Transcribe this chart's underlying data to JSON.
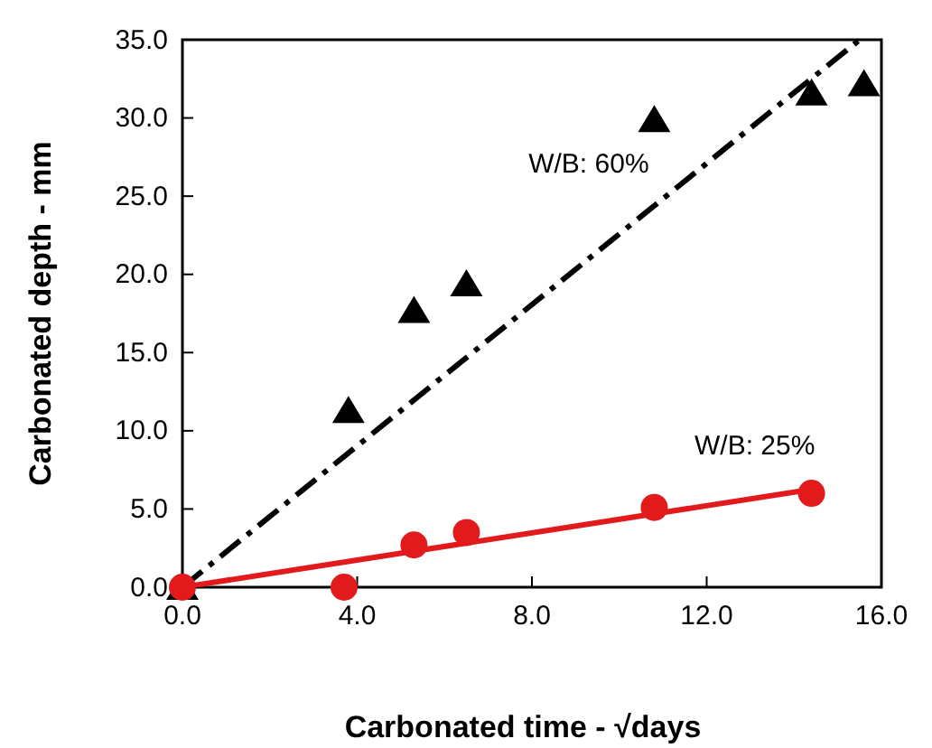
{
  "chart_data": {
    "type": "scatter",
    "xlabel": "Carbonated time - √days",
    "ylabel": "Carbonated depth - mm",
    "xlim": [
      0,
      16
    ],
    "ylim": [
      0,
      35
    ],
    "xticks": [
      {
        "value": 0,
        "label": "0.0"
      },
      {
        "value": 4,
        "label": "4.0"
      },
      {
        "value": 8,
        "label": "8.0"
      },
      {
        "value": 12,
        "label": "12.0"
      },
      {
        "value": 16,
        "label": "16.0"
      }
    ],
    "yticks": [
      {
        "value": 0,
        "label": "0.0"
      },
      {
        "value": 5,
        "label": "5.0"
      },
      {
        "value": 10,
        "label": "10.0"
      },
      {
        "value": 15,
        "label": "15.0"
      },
      {
        "value": 20,
        "label": "20.0"
      },
      {
        "value": 25,
        "label": "25.0"
      },
      {
        "value": 30,
        "label": "30.0"
      },
      {
        "value": 35,
        "label": "35.0"
      }
    ],
    "grid": false,
    "series": [
      {
        "name": "W/B: 60%",
        "color": "#000000",
        "marker": "triangle",
        "x": [
          0,
          3.8,
          5.3,
          6.5,
          10.8,
          14.4,
          15.6
        ],
        "values": [
          0,
          11.3,
          17.7,
          19.4,
          29.9,
          31.6,
          32.2
        ]
      },
      {
        "name": "W/B: 25%",
        "color": "#e31a1c",
        "marker": "circle",
        "x": [
          0,
          3.7,
          5.3,
          6.5,
          10.8,
          14.4
        ],
        "values": [
          0,
          0,
          2.7,
          3.5,
          5.1,
          6.0
        ]
      },
      {
        "type": "line",
        "color": "#000000",
        "line_style": "dashed",
        "marker": "none",
        "x": [
          0,
          15.5
        ],
        "values": [
          0,
          35
        ]
      },
      {
        "type": "line",
        "color": "#e31a1c",
        "line_style": "solid",
        "marker": "none",
        "x": [
          0,
          14.5
        ],
        "values": [
          0,
          6.3
        ]
      }
    ]
  }
}
